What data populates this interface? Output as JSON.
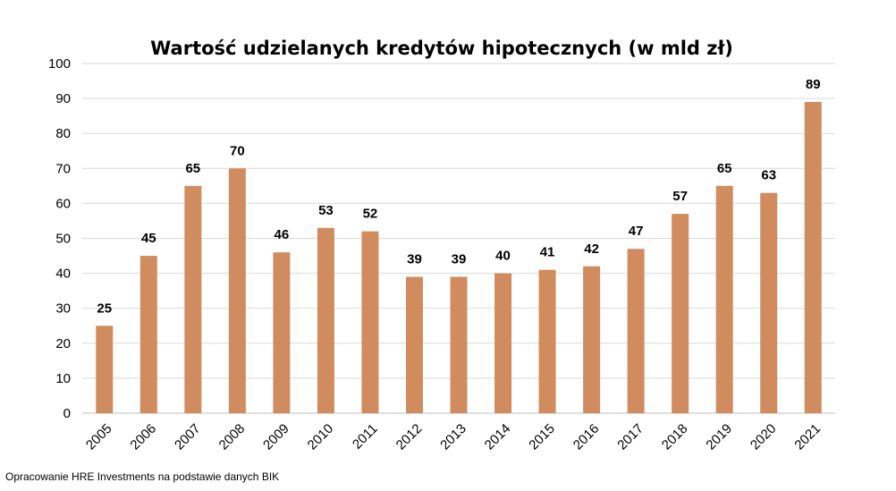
{
  "chart_data": {
    "type": "bar",
    "title": "Wartość udzielanych kredytów hipotecznych (w mld zł)",
    "categories": [
      "2005",
      "2006",
      "2007",
      "2008",
      "2009",
      "2010",
      "2011",
      "2012",
      "2013",
      "2014",
      "2015",
      "2016",
      "2017",
      "2018",
      "2019",
      "2020",
      "2021"
    ],
    "values": [
      25,
      45,
      65,
      70,
      46,
      53,
      52,
      39,
      39,
      40,
      41,
      42,
      47,
      57,
      65,
      63,
      89
    ],
    "ylim": [
      0,
      100
    ],
    "yticks": [
      0,
      10,
      20,
      30,
      40,
      50,
      60,
      70,
      80,
      90,
      100
    ],
    "xlabel": "",
    "ylabel": "",
    "grid": true,
    "bar_color": "#d08c5f"
  },
  "source_note": "Opracowanie HRE Investments na podstawie danych BIK"
}
